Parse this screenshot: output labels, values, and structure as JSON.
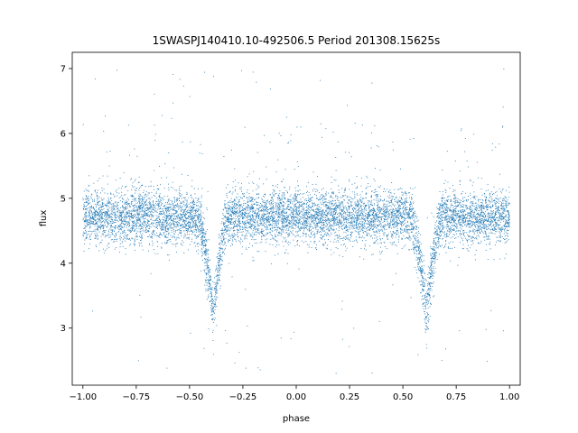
{
  "chart_data": {
    "type": "scatter",
    "title": "1SWASPJ140410.10-492506.5 Period 201308.15625s",
    "xlabel": "phase",
    "ylabel": "flux",
    "xlim": [
      -1.05,
      1.05
    ],
    "ylim": [
      2.12,
      7.25
    ],
    "x_ticks": [
      -1.0,
      -0.75,
      -0.5,
      -0.25,
      0.0,
      0.25,
      0.5,
      0.75,
      1.0
    ],
    "x_tick_labels": [
      "−1.00",
      "−0.75",
      "−0.50",
      "−0.25",
      "0.00",
      "0.25",
      "0.50",
      "0.75",
      "1.00"
    ],
    "y_ticks": [
      3,
      4,
      5,
      6,
      7
    ],
    "y_tick_labels": [
      "3",
      "4",
      "5",
      "6",
      "7"
    ],
    "grid": false,
    "marker_color": "#1f77b4",
    "series": [
      {
        "light_curve": {
          "baseline_flux": 4.72,
          "scatter_sigma": 0.2,
          "primary_eclipse": {
            "phase_center": -0.39,
            "min_flux": 3.2,
            "half_width": 0.075
          },
          "secondary_eclipse": {
            "phase_center": 0.61,
            "min_flux": 3.2,
            "half_width": 0.075
          },
          "phase_range": [
            -1.0,
            1.0
          ],
          "outlier_range": [
            2.3,
            7.0
          ]
        }
      }
    ]
  }
}
